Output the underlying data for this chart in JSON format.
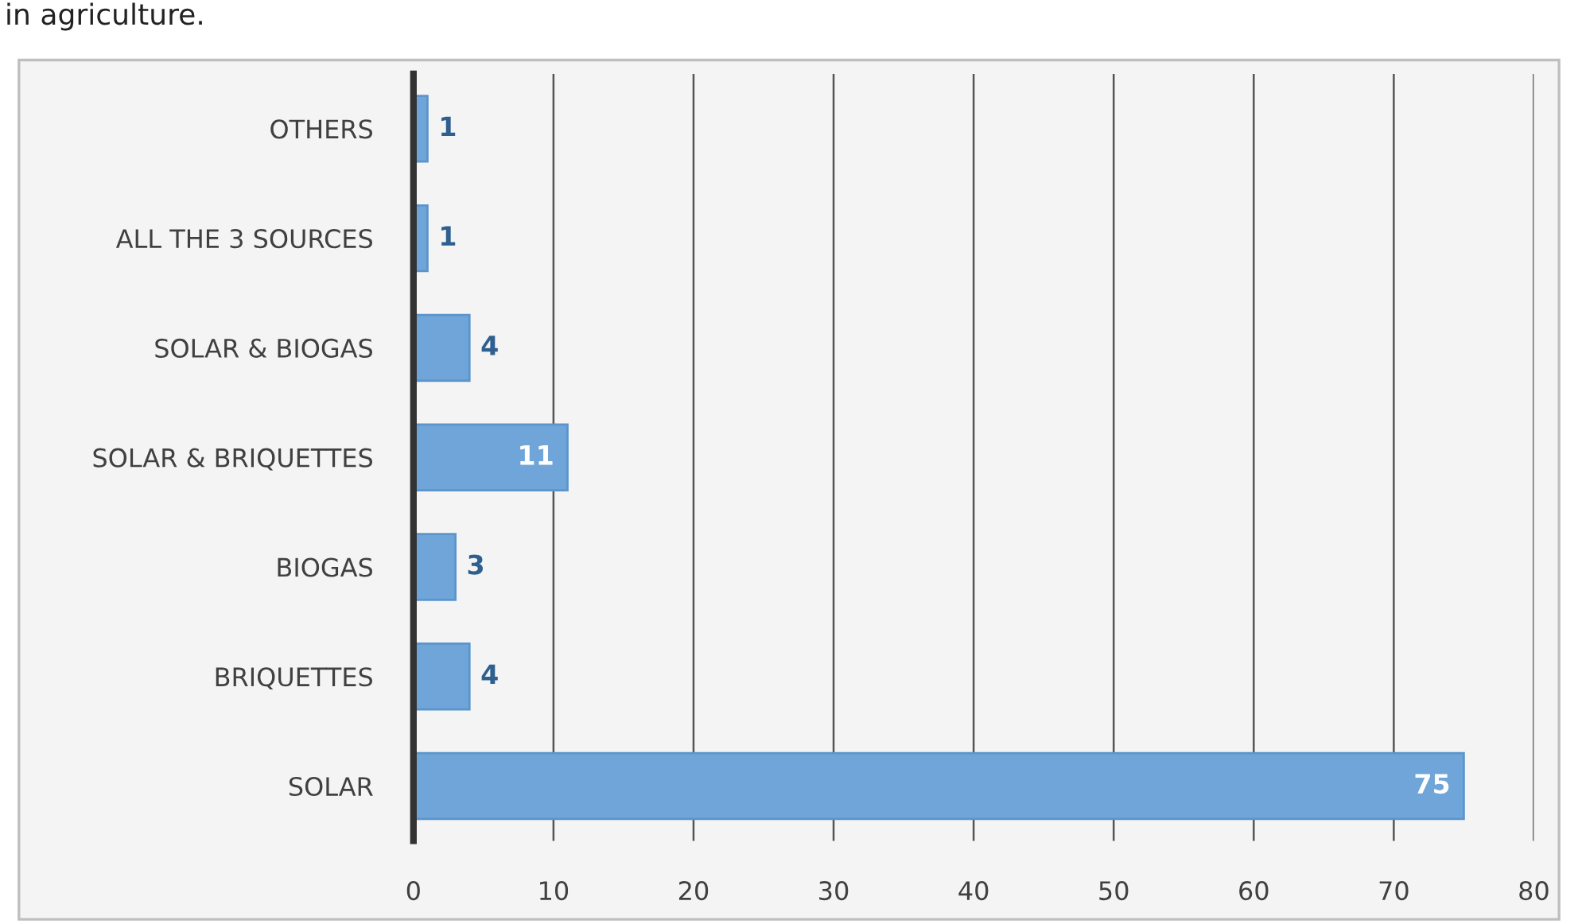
{
  "chart_data": {
    "type": "bar",
    "orientation": "horizontal",
    "annotations": [
      "in agriculture."
    ],
    "categories": [
      "OTHERS",
      "ALL THE 3 SOURCES",
      "SOLAR & BIOGAS",
      "SOLAR & BRIQUETTES",
      "BIOGAS",
      "BRIQUETTES",
      "SOLAR"
    ],
    "values": [
      1,
      1,
      4,
      11,
      3,
      4,
      75
    ],
    "color": "#6fa5d9",
    "xlim": [
      0,
      80
    ],
    "xticks": [
      0,
      10,
      20,
      30,
      40,
      50,
      60,
      70,
      80
    ],
    "grid": "x",
    "data_labels": true
  }
}
